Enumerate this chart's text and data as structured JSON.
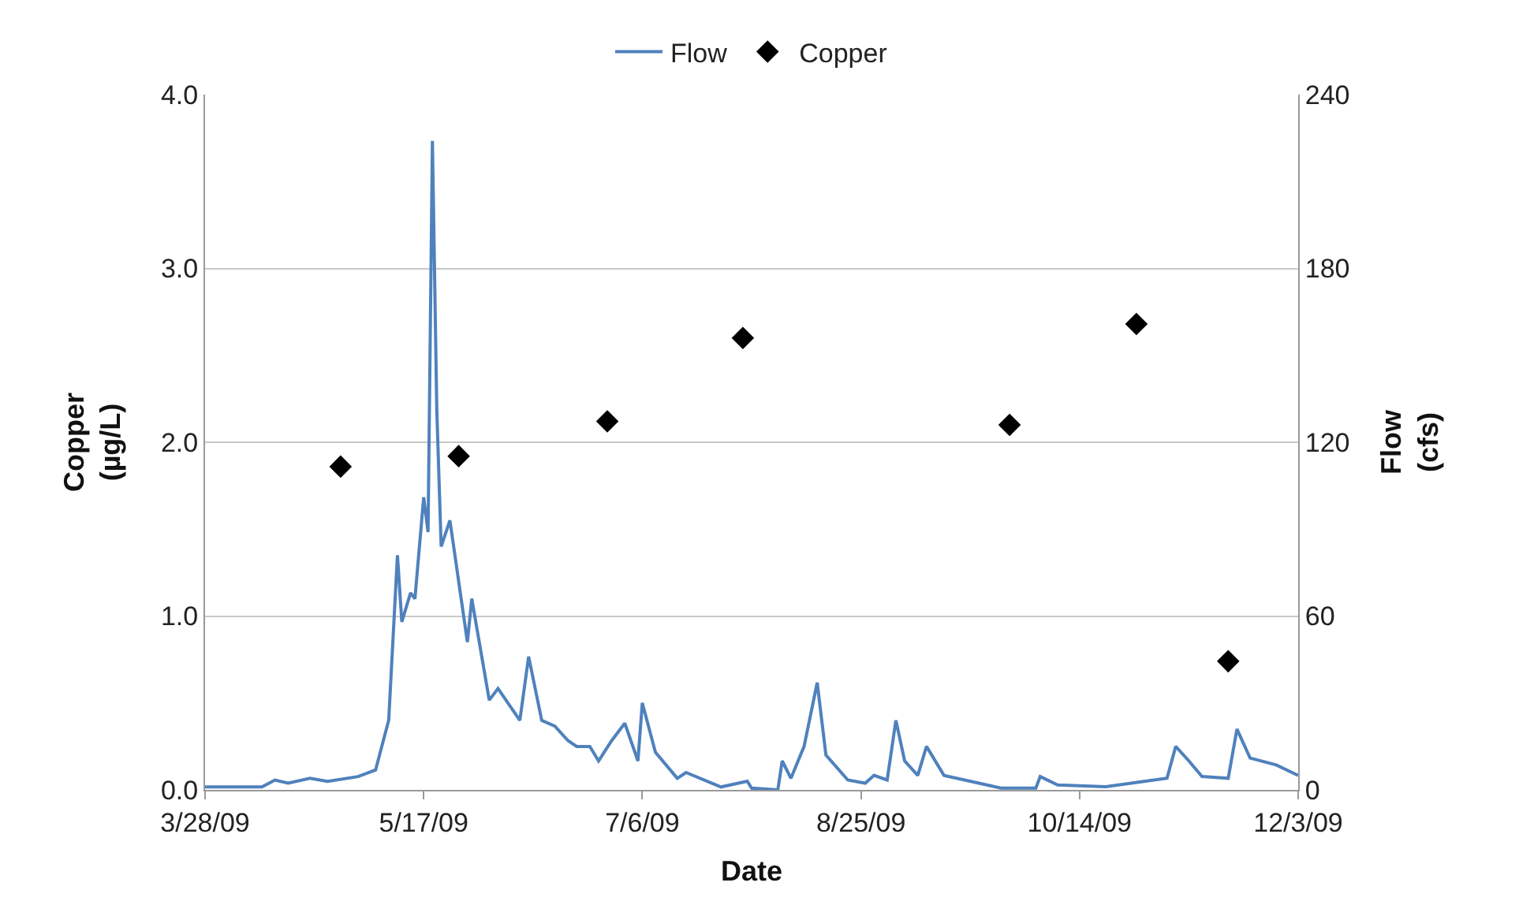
{
  "chart_data": {
    "type": "line",
    "xlabel": "Date",
    "ylabel": "Copper\n(µg/L)",
    "y2label": "Flow\n(cfs)",
    "xlim": [
      "2009-03-28",
      "2009-12-03"
    ],
    "xticks": [
      {
        "value": "2009-03-28",
        "label": "3/28/09"
      },
      {
        "value": "2009-05-17",
        "label": "5/17/09"
      },
      {
        "value": "2009-07-06",
        "label": "7/6/09"
      },
      {
        "value": "2009-08-25",
        "label": "8/25/09"
      },
      {
        "value": "2009-10-14",
        "label": "10/14/09"
      },
      {
        "value": "2009-12-03",
        "label": "12/3/09"
      }
    ],
    "ylim": [
      0,
      4
    ],
    "yticks": [
      {
        "value": 0,
        "label": "0.0"
      },
      {
        "value": 1,
        "label": "1.0"
      },
      {
        "value": 2,
        "label": "2.0"
      },
      {
        "value": 3,
        "label": "3.0"
      },
      {
        "value": 4,
        "label": "4.0"
      }
    ],
    "y2lim": [
      0,
      240
    ],
    "y2ticks": [
      0,
      60,
      120,
      180,
      240
    ],
    "grid": "y",
    "legend": "top",
    "series": [
      {
        "name": "Flow",
        "axis": "y2",
        "color": "#4f81bd",
        "marker": "none",
        "line_style": "solid",
        "x": [
          "2009-03-28",
          "2009-04-10",
          "2009-04-13",
          "2009-04-16",
          "2009-04-21",
          "2009-04-25",
          "2009-05-02",
          "2009-05-06",
          "2009-05-09",
          "2009-05-11",
          "2009-05-12",
          "2009-05-14",
          "2009-05-15",
          "2009-05-17",
          "2009-05-18",
          "2009-05-19",
          "2009-05-20",
          "2009-05-21",
          "2009-05-23",
          "2009-05-27",
          "2009-05-28",
          "2009-06-01",
          "2009-06-03",
          "2009-06-08",
          "2009-06-10",
          "2009-06-13",
          "2009-06-16",
          "2009-06-19",
          "2009-06-21",
          "2009-06-24",
          "2009-06-26",
          "2009-06-29",
          "2009-07-02",
          "2009-07-05",
          "2009-07-06",
          "2009-07-09",
          "2009-07-14",
          "2009-07-16",
          "2009-07-24",
          "2009-07-30",
          "2009-07-31",
          "2009-08-06",
          "2009-08-07",
          "2009-08-09",
          "2009-08-12",
          "2009-08-15",
          "2009-08-17",
          "2009-08-22",
          "2009-08-26",
          "2009-08-28",
          "2009-08-31",
          "2009-09-02",
          "2009-09-04",
          "2009-09-07",
          "2009-09-09",
          "2009-09-13",
          "2009-09-21",
          "2009-09-26",
          "2009-10-04",
          "2009-10-05",
          "2009-10-09",
          "2009-10-20",
          "2009-10-31",
          "2009-11-03",
          "2009-11-05",
          "2009-11-08",
          "2009-11-11",
          "2009-11-17",
          "2009-11-19",
          "2009-11-22",
          "2009-11-28",
          "2009-12-03"
        ],
        "values": [
          1,
          1,
          3.4,
          2.3,
          4,
          2.9,
          4.6,
          6.9,
          24,
          81,
          58,
          68,
          66,
          101,
          89,
          224,
          131,
          84,
          93,
          51,
          66,
          31,
          35,
          24,
          46,
          24,
          22,
          17,
          15,
          15,
          10,
          17,
          23,
          10,
          30,
          13,
          4,
          6,
          1,
          3,
          0.6,
          0,
          10,
          4,
          15,
          37,
          12,
          3.4,
          2.3,
          5,
          3.4,
          24,
          10,
          5,
          15,
          5,
          2.3,
          0.6,
          0.6,
          4.6,
          1.7,
          1.1,
          3.4,
          4,
          15,
          10,
          4.6,
          4,
          21,
          11,
          8.6,
          5
        ]
      },
      {
        "name": "Copper",
        "type": "scatter",
        "axis": "y",
        "color": "#000000",
        "marker": "diamond",
        "x": [
          "2009-04-28",
          "2009-05-25",
          "2009-06-28",
          "2009-07-29",
          "2009-09-28",
          "2009-10-27",
          "2009-11-17"
        ],
        "values": [
          1.86,
          1.92,
          2.12,
          2.6,
          2.1,
          2.68,
          0.74
        ]
      }
    ]
  }
}
